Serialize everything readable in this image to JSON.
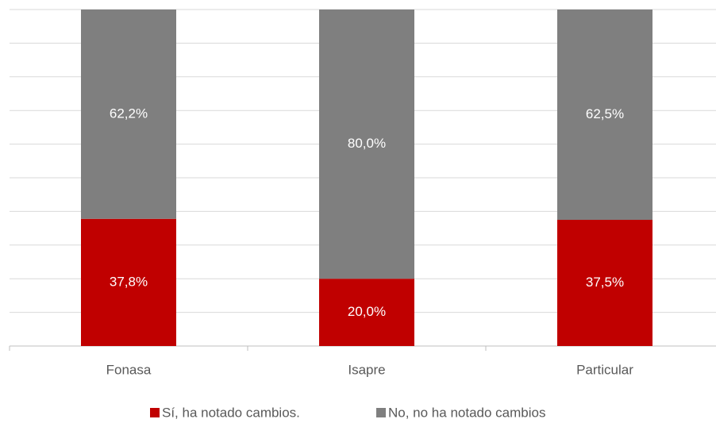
{
  "chart_data": {
    "type": "stacked_bar",
    "categories": [
      "Fonasa",
      "Isapre",
      "Particular"
    ],
    "series": [
      {
        "name": "Sí, ha notado cambios.",
        "color": "#c00000",
        "values": [
          37.8,
          20.0,
          37.5
        ],
        "value_labels": [
          "37,8%",
          "20,0%",
          "37,5%"
        ]
      },
      {
        "name": "No, no ha notado cambios",
        "color": "#7f7f7f",
        "values": [
          62.2,
          80.0,
          62.5
        ],
        "value_labels": [
          "62,2%",
          "80,0%",
          "62,5%"
        ]
      }
    ],
    "ylim": [
      0,
      100
    ],
    "yticks": [
      0,
      10,
      20,
      30,
      40,
      50,
      60,
      70,
      80,
      90,
      100
    ],
    "grid": true,
    "legend": "bottom"
  }
}
